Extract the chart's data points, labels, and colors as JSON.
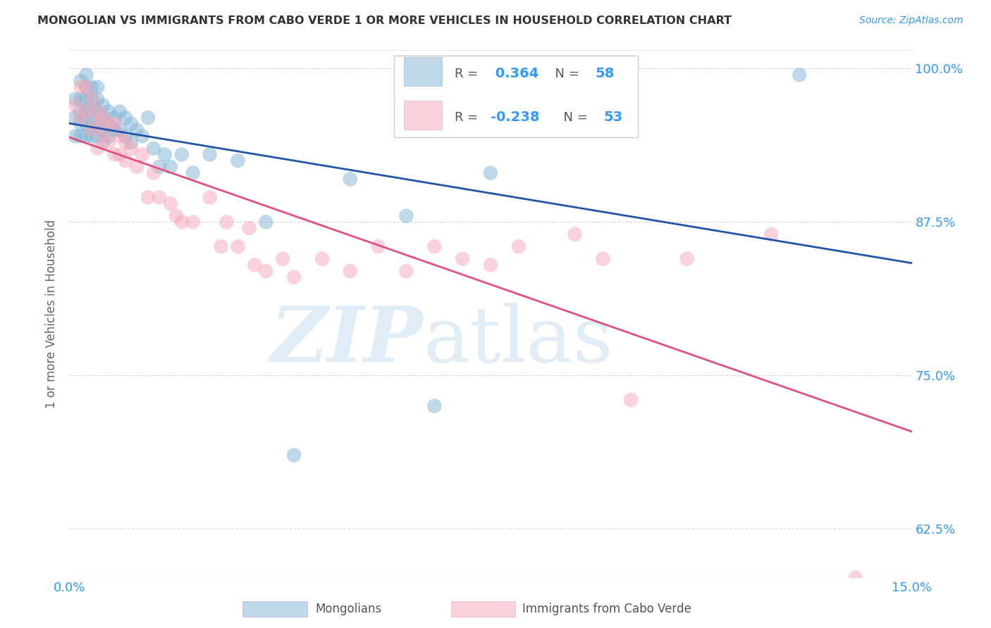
{
  "title": "MONGOLIAN VS IMMIGRANTS FROM CABO VERDE 1 OR MORE VEHICLES IN HOUSEHOLD CORRELATION CHART",
  "source": "Source: ZipAtlas.com",
  "ylabel": "1 or more Vehicles in Household",
  "xlim": [
    0.0,
    0.15
  ],
  "ylim": [
    0.585,
    1.015
  ],
  "yticks": [
    0.625,
    0.75,
    0.875,
    1.0
  ],
  "ytick_labels": [
    "62.5%",
    "75.0%",
    "87.5%",
    "100.0%"
  ],
  "xticks": [
    0.0,
    0.025,
    0.05,
    0.075,
    0.1,
    0.125,
    0.15
  ],
  "xtick_labels": [
    "0.0%",
    "",
    "",
    "",
    "",
    "",
    "15.0%"
  ],
  "legend_blue_r": "0.364",
  "legend_blue_n": "58",
  "legend_pink_r": "-0.238",
  "legend_pink_n": "53",
  "blue_color": "#7FB3D3",
  "pink_color": "#F4A7B9",
  "blue_line_color": "#2255AA",
  "pink_line_color": "#E05080",
  "blue_x": [
    0.001,
    0.001,
    0.001,
    0.002,
    0.002,
    0.002,
    0.002,
    0.002,
    0.003,
    0.003,
    0.003,
    0.003,
    0.003,
    0.003,
    0.004,
    0.004,
    0.004,
    0.004,
    0.004,
    0.005,
    0.005,
    0.005,
    0.005,
    0.005,
    0.006,
    0.006,
    0.006,
    0.006,
    0.007,
    0.007,
    0.007,
    0.008,
    0.008,
    0.009,
    0.009,
    0.01,
    0.01,
    0.011,
    0.011,
    0.012,
    0.013,
    0.014,
    0.015,
    0.016,
    0.017,
    0.018,
    0.02,
    0.022,
    0.025,
    0.03,
    0.035,
    0.04,
    0.05,
    0.06,
    0.065,
    0.075,
    0.09,
    0.13
  ],
  "blue_y": [
    0.975,
    0.96,
    0.945,
    0.99,
    0.975,
    0.965,
    0.955,
    0.945,
    0.995,
    0.985,
    0.975,
    0.965,
    0.955,
    0.945,
    0.985,
    0.975,
    0.965,
    0.955,
    0.945,
    0.985,
    0.975,
    0.965,
    0.955,
    0.945,
    0.97,
    0.96,
    0.95,
    0.94,
    0.965,
    0.955,
    0.945,
    0.96,
    0.95,
    0.965,
    0.95,
    0.96,
    0.945,
    0.955,
    0.94,
    0.95,
    0.945,
    0.96,
    0.935,
    0.92,
    0.93,
    0.92,
    0.93,
    0.915,
    0.93,
    0.925,
    0.875,
    0.685,
    0.91,
    0.88,
    0.725,
    0.915,
    0.96,
    0.995
  ],
  "pink_x": [
    0.001,
    0.002,
    0.002,
    0.003,
    0.003,
    0.004,
    0.004,
    0.005,
    0.005,
    0.005,
    0.006,
    0.006,
    0.007,
    0.007,
    0.008,
    0.008,
    0.009,
    0.009,
    0.01,
    0.01,
    0.011,
    0.012,
    0.013,
    0.014,
    0.015,
    0.016,
    0.018,
    0.019,
    0.02,
    0.022,
    0.025,
    0.027,
    0.028,
    0.03,
    0.032,
    0.033,
    0.035,
    0.038,
    0.04,
    0.045,
    0.05,
    0.055,
    0.06,
    0.065,
    0.07,
    0.075,
    0.08,
    0.09,
    0.095,
    0.1,
    0.11,
    0.125,
    0.14
  ],
  "pink_y": [
    0.97,
    0.985,
    0.96,
    0.985,
    0.965,
    0.975,
    0.95,
    0.965,
    0.955,
    0.935,
    0.96,
    0.945,
    0.955,
    0.94,
    0.955,
    0.93,
    0.945,
    0.93,
    0.94,
    0.925,
    0.935,
    0.92,
    0.93,
    0.895,
    0.915,
    0.895,
    0.89,
    0.88,
    0.875,
    0.875,
    0.895,
    0.855,
    0.875,
    0.855,
    0.87,
    0.84,
    0.835,
    0.845,
    0.83,
    0.845,
    0.835,
    0.855,
    0.835,
    0.855,
    0.845,
    0.84,
    0.855,
    0.865,
    0.845,
    0.73,
    0.845,
    0.865,
    0.585
  ]
}
